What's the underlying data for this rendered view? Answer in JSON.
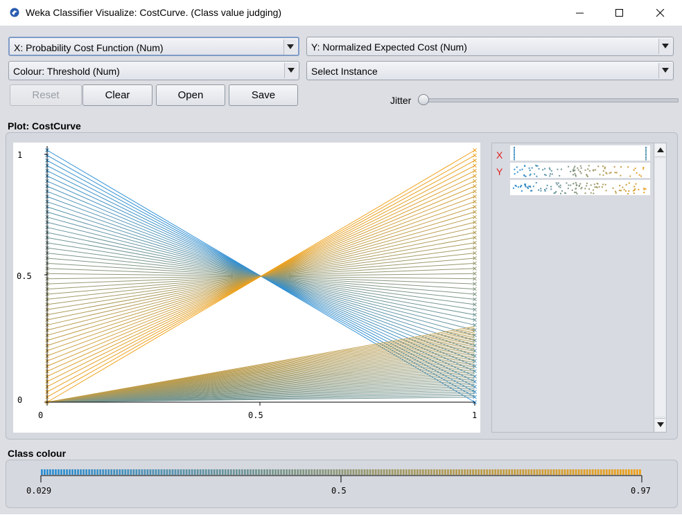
{
  "window": {
    "title": "Weka Classifier Visualize: CostCurve. (Class value judging)"
  },
  "controls": {
    "x_axis": "X: Probability Cost Function (Num)",
    "y_axis": "Y: Normalized Expected Cost (Num)",
    "colour": "Colour: Threshold (Num)",
    "instance": "Select Instance",
    "reset_label": "Reset",
    "clear_label": "Clear",
    "open_label": "Open",
    "save_label": "Save",
    "jitter_label": "Jitter",
    "jitter_value": 0
  },
  "plot": {
    "label": "Plot: CostCurve",
    "y_ticks": [
      "1",
      "0.5",
      "0"
    ],
    "x_ticks": [
      "0",
      "0.5",
      "1"
    ]
  },
  "side_panel": {
    "x_marker": "X",
    "y_marker": "Y"
  },
  "class_colour": {
    "label": "Class colour",
    "min_label": "0.029",
    "mid_label": "0.5",
    "max_label": "0.97"
  },
  "colors": {
    "low": "#2d8fd6",
    "high": "#f0a11a",
    "window_bg": "#dcdee3"
  },
  "chart_data": {
    "type": "line",
    "xlabel": "Probability Cost Function",
    "ylabel": "Normalized Expected Cost",
    "xlim": [
      0,
      1
    ],
    "ylim": [
      0,
      1
    ],
    "series_count": 50,
    "description_of_series": "Each threshold t gives a line from (0, FPR) to (1, FNR); colour interpolates from blue (low threshold) to orange (high threshold)",
    "threshold_range": [
      0.029,
      0.97
    ]
  }
}
